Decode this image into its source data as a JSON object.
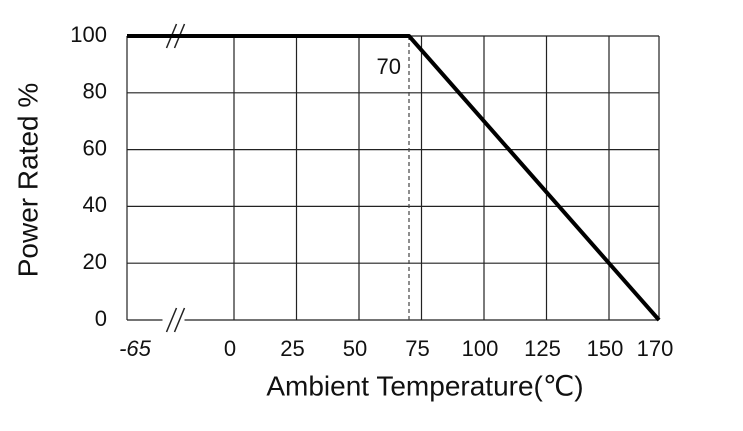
{
  "chart_data": {
    "type": "line",
    "x_label": "Ambient Temperature(℃)",
    "y_label": "Power Rated %",
    "x": [
      -65,
      70,
      170
    ],
    "values": [
      100,
      100,
      0
    ],
    "color": "#000000",
    "x_break": true,
    "xlim": [
      -65,
      170
    ],
    "xticks": [
      -65,
      0,
      25,
      50,
      75,
      100,
      125,
      150,
      170
    ],
    "ylim": [
      0,
      100
    ],
    "yticks": [
      0,
      20,
      40,
      60,
      80,
      100
    ],
    "grid": true,
    "annotation": {
      "x": 70,
      "text": "70"
    }
  }
}
